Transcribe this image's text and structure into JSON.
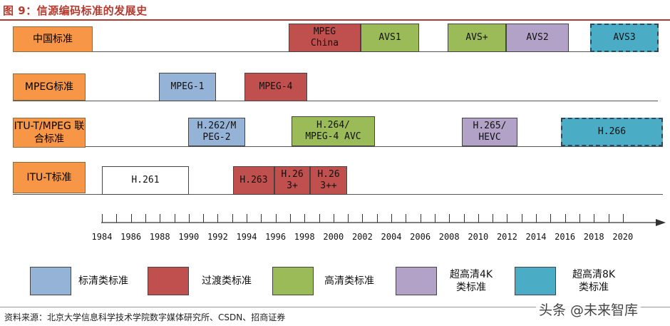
{
  "title": "图 9：信源编码标准的发展史",
  "lanes": [
    {
      "label": "中国标准"
    },
    {
      "label": "MPEG标准"
    },
    {
      "label": "ITU-T/MPEG\n联合标准"
    },
    {
      "label": "ITU-T标准"
    }
  ],
  "boxes": {
    "mpeg_china": "MPEG\nChina",
    "avs1": "AVS1",
    "avs_plus": "AVS+",
    "avs2": "AVS2",
    "avs3": "AVS3",
    "mpeg1": "MPEG-1",
    "mpeg4": "MPEG-4",
    "h262": "H.262/M\nPEG-2",
    "h264": "H.264/\nMPEG-4 AVC",
    "h265": "H.265/\nHEVC",
    "h266": "H.266",
    "h261": "H.261",
    "h263": "H.263",
    "h263p": "H.26\n3+",
    "h263pp": "H.26\n3++"
  },
  "years": [
    "1984",
    "1986",
    "1988",
    "1990",
    "1992",
    "1994",
    "1996",
    "1998",
    "2000",
    "2002",
    "2004",
    "2006",
    "2008",
    "2010",
    "2012",
    "2014",
    "2016",
    "2018",
    "2020"
  ],
  "legend": [
    {
      "label": "标清类标准",
      "color": "#95b3d7"
    },
    {
      "label": "过渡类标准",
      "color": "#c0504d"
    },
    {
      "label": "高清类标准",
      "color": "#9bbb59"
    },
    {
      "label": "超高清4K\n类标准",
      "color": "#b3a2c7"
    },
    {
      "label": "超高清8K\n类标准",
      "color": "#4bacc6"
    }
  ],
  "source": "资料来源：北京大学信息科学技术学院数字媒体研究所、CSDN、招商证券",
  "watermark": "头条 @未来智库"
}
